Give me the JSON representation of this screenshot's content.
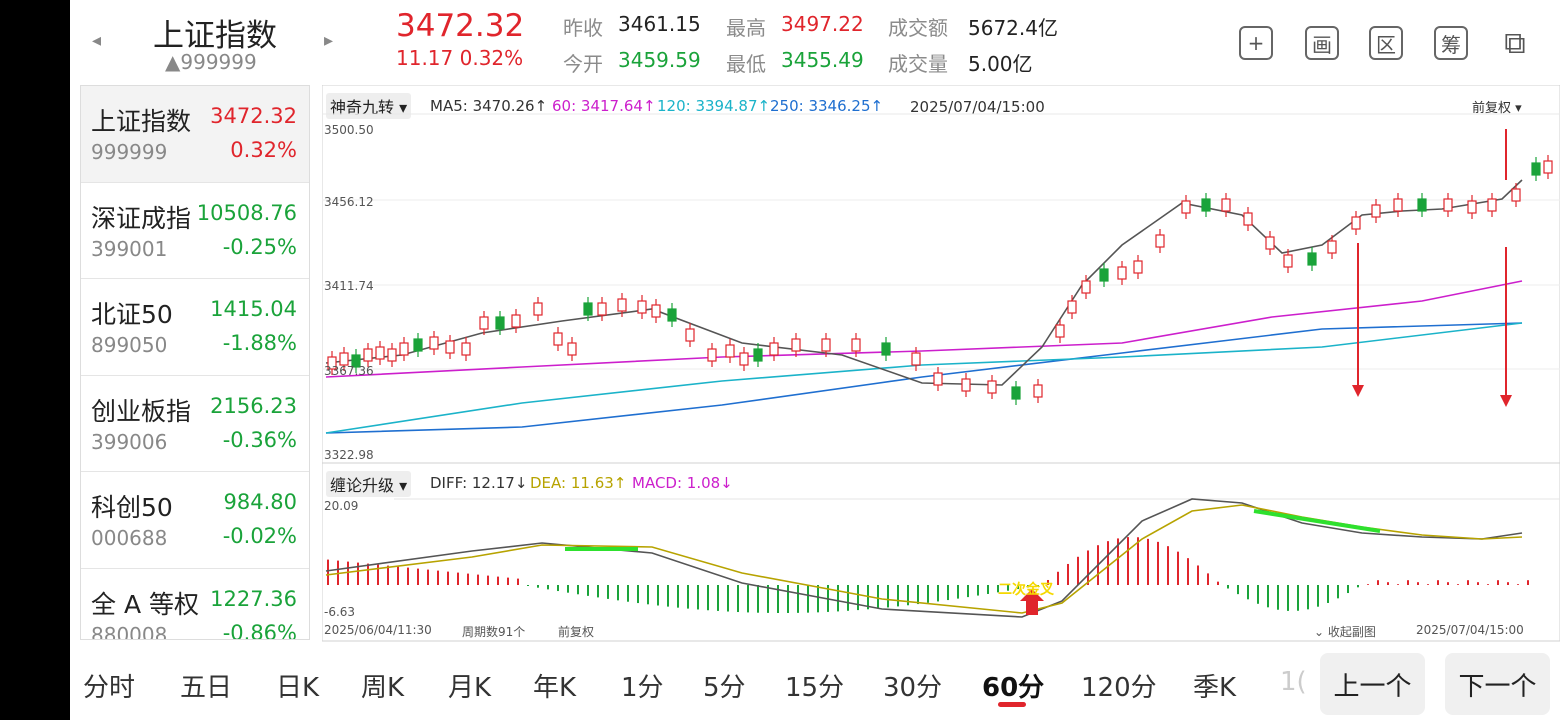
{
  "header": {
    "title": "上证指数",
    "code": "▲999999",
    "price": "3472.32",
    "change": "11.17  0.32%",
    "stats": [
      {
        "label": "昨收",
        "value": "3461.15",
        "color": "blk"
      },
      {
        "label": "今开",
        "value": "3459.59",
        "color": "grn"
      },
      {
        "label": "最高",
        "value": "3497.22",
        "color": "red"
      },
      {
        "label": "最低",
        "value": "3455.49",
        "color": "grn"
      },
      {
        "label": "成交额",
        "value": "5672.4亿",
        "color": "blk"
      },
      {
        "label": "成交量",
        "value": "5.00亿",
        "color": "blk"
      }
    ],
    "tools": [
      "plus-icon",
      "draw-icon",
      "region-icon",
      "chip-icon",
      "device-icon"
    ],
    "tool_glyphs": [
      "+",
      "画",
      "区",
      "筹",
      "⧉"
    ]
  },
  "list": [
    {
      "name": "上证指数",
      "price": "3472.32",
      "code": "999999",
      "pct": "0.32%",
      "color": "red"
    },
    {
      "name": "深证成指",
      "price": "10508.76",
      "code": "399001",
      "pct": "-0.25%",
      "color": "grn"
    },
    {
      "name": "北证50",
      "price": "1415.04",
      "code": "899050",
      "pct": "-1.88%",
      "color": "grn"
    },
    {
      "name": "创业板指",
      "price": "2156.23",
      "code": "399006",
      "pct": "-0.36%",
      "color": "grn"
    },
    {
      "name": "科创50",
      "price": "984.80",
      "code": "000688",
      "pct": "-0.02%",
      "color": "grn"
    },
    {
      "name": "全 A 等权",
      "price": "1227.36",
      "code": "880008",
      "pct": "-0.86%",
      "color": "grn"
    }
  ],
  "chart": {
    "indicator": "神奇九转",
    "ma": [
      {
        "label": "MA5: 3470.26↑",
        "color": "#333333"
      },
      {
        "label": "60: 3417.64↑",
        "color": "#cc1fcc"
      },
      {
        "label": "120: 3394.87↑",
        "color": "#1bb3c9"
      },
      {
        "label": "250: 3346.25↑",
        "color": "#1f6fd0"
      }
    ],
    "datetime": "2025/07/04/15:00",
    "adjust": "前复权",
    "y_ticks": [
      "3500.50",
      "3456.12",
      "3411.74",
      "3367.36",
      "3322.98"
    ],
    "sub_indicator": "缠论升级",
    "macd": [
      {
        "label": "DIFF: 12.17↓",
        "color": "#333333"
      },
      {
        "label": "DEA: 11.63↑",
        "color": "#b7a300"
      },
      {
        "label": "MACD: 1.08↓",
        "color": "#cc1fcc"
      }
    ],
    "sub_y_ticks": [
      "20.09",
      "-6.63"
    ],
    "signal_text": "二次金叉",
    "footer_start": "2025/06/04/11:30",
    "footer_period": "周期数91个",
    "footer_adjust": "前复权",
    "footer_collapse": "收起副图",
    "footer_end": "2025/07/04/15:00"
  },
  "tabs": [
    "分时",
    "五日",
    "日K",
    "周K",
    "月K",
    "年K",
    "1分",
    "5分",
    "15分",
    "30分",
    "60分",
    "120分",
    "季K",
    "1("
  ],
  "nav": {
    "prev": "上一个",
    "next": "下一个"
  }
}
